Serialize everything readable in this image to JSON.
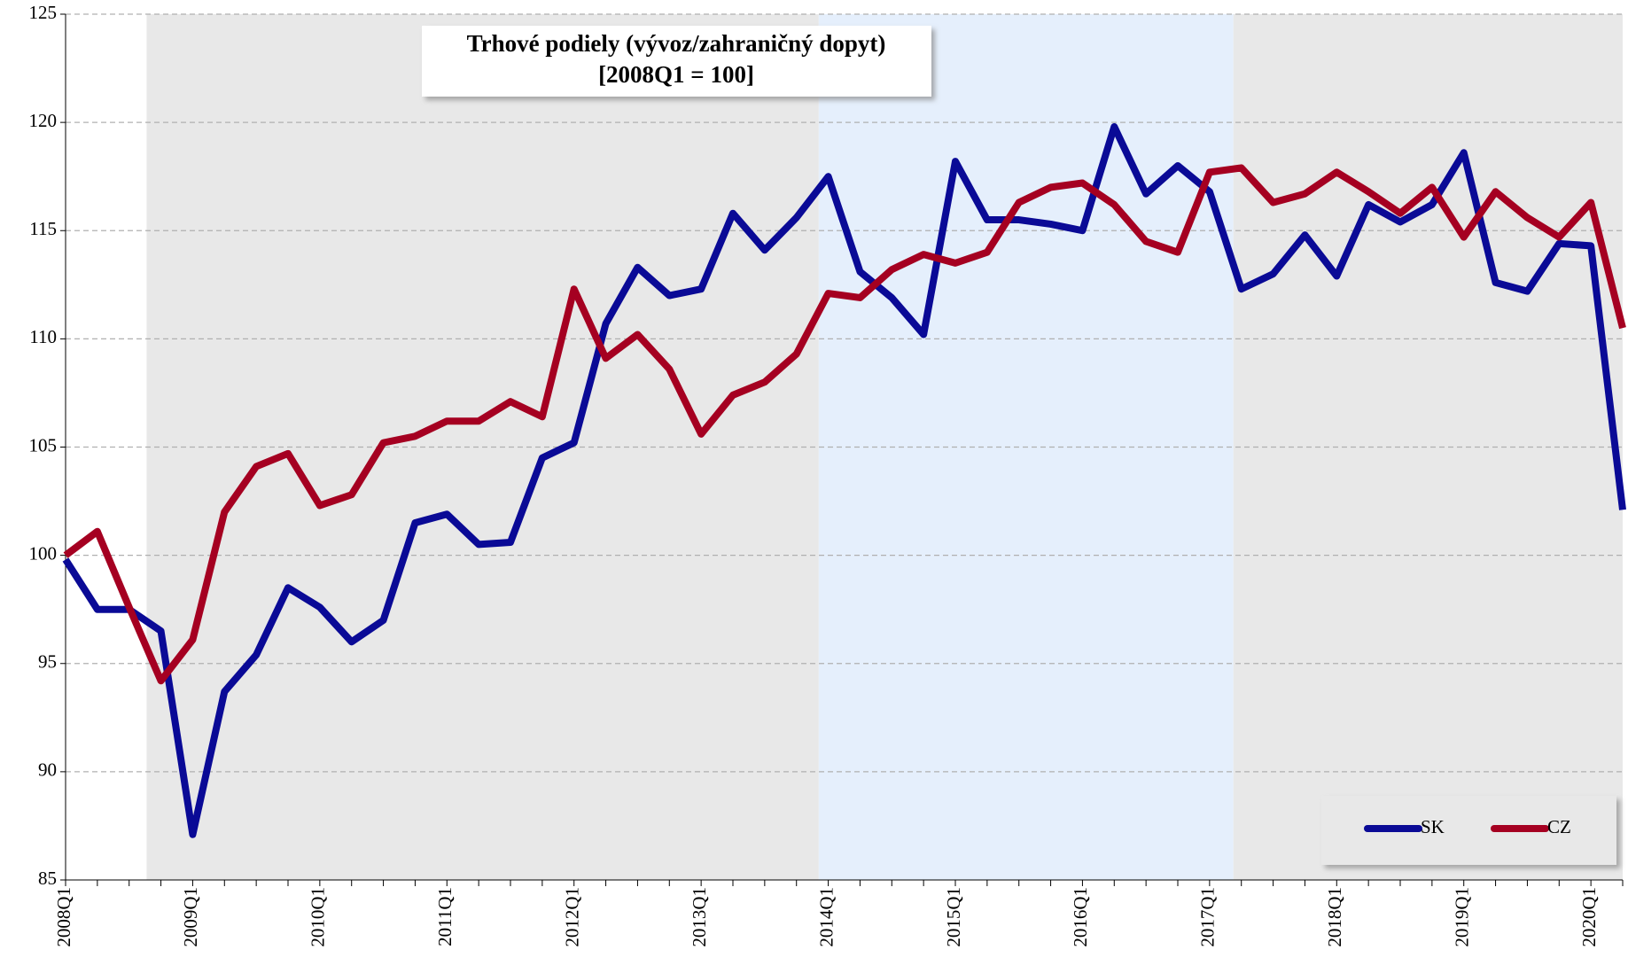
{
  "chart_data": {
    "type": "line",
    "title": "Trhové podiely (vývoz/zahraničný dopyt)",
    "subtitle": "[2008Q1 = 100]",
    "categories": [
      "2008Q1",
      null,
      null,
      null,
      "2009Q1",
      null,
      null,
      null,
      "2010Q1",
      null,
      null,
      null,
      "2011Q1",
      null,
      null,
      null,
      "2012Q1",
      null,
      null,
      null,
      "2013Q1",
      null,
      null,
      null,
      "2014Q1",
      null,
      null,
      null,
      "2015Q1",
      null,
      null,
      null,
      "2016Q1",
      null,
      null,
      null,
      "2017Q1",
      null,
      null,
      null,
      "2018Q1",
      null,
      null,
      null,
      "2019Q1",
      null,
      null,
      null,
      "2020Q1",
      null
    ],
    "series": [
      {
        "name": "SK",
        "color": "#0a0a96",
        "values": [
          99.8,
          97.5,
          97.5,
          96.5,
          87.1,
          93.7,
          95.4,
          98.5,
          97.6,
          96.0,
          97.0,
          101.5,
          101.9,
          100.5,
          100.6,
          104.5,
          105.2,
          110.7,
          113.3,
          112.0,
          112.3,
          115.8,
          114.1,
          115.6,
          117.5,
          113.1,
          111.9,
          110.2,
          118.2,
          115.5,
          115.5,
          115.3,
          115.0,
          119.8,
          116.7,
          118.0,
          116.8,
          112.3,
          113.0,
          114.8,
          112.9,
          116.2,
          115.4,
          116.2,
          118.6,
          112.6,
          112.2,
          114.4,
          114.3,
          102.1
        ]
      },
      {
        "name": "CZ",
        "color": "#a50021",
        "values": [
          100.0,
          101.1,
          97.6,
          94.2,
          96.1,
          102.0,
          104.1,
          104.7,
          102.3,
          102.8,
          105.2,
          105.5,
          106.2,
          106.2,
          107.1,
          106.4,
          112.3,
          109.1,
          110.2,
          108.6,
          105.6,
          107.4,
          108.0,
          109.3,
          112.1,
          111.9,
          113.2,
          113.9,
          113.5,
          114.0,
          116.3,
          117.0,
          117.2,
          116.2,
          114.5,
          114.0,
          117.7,
          117.9,
          116.3,
          116.7,
          117.7,
          116.8,
          115.8,
          117.0,
          114.7,
          116.8,
          115.6,
          114.7,
          116.3,
          110.5
        ]
      }
    ],
    "ylim": [
      85,
      125
    ],
    "yticks": [
      85,
      90,
      95,
      100,
      105,
      110,
      115,
      120,
      125
    ],
    "grid": true,
    "legend": "lower right"
  }
}
